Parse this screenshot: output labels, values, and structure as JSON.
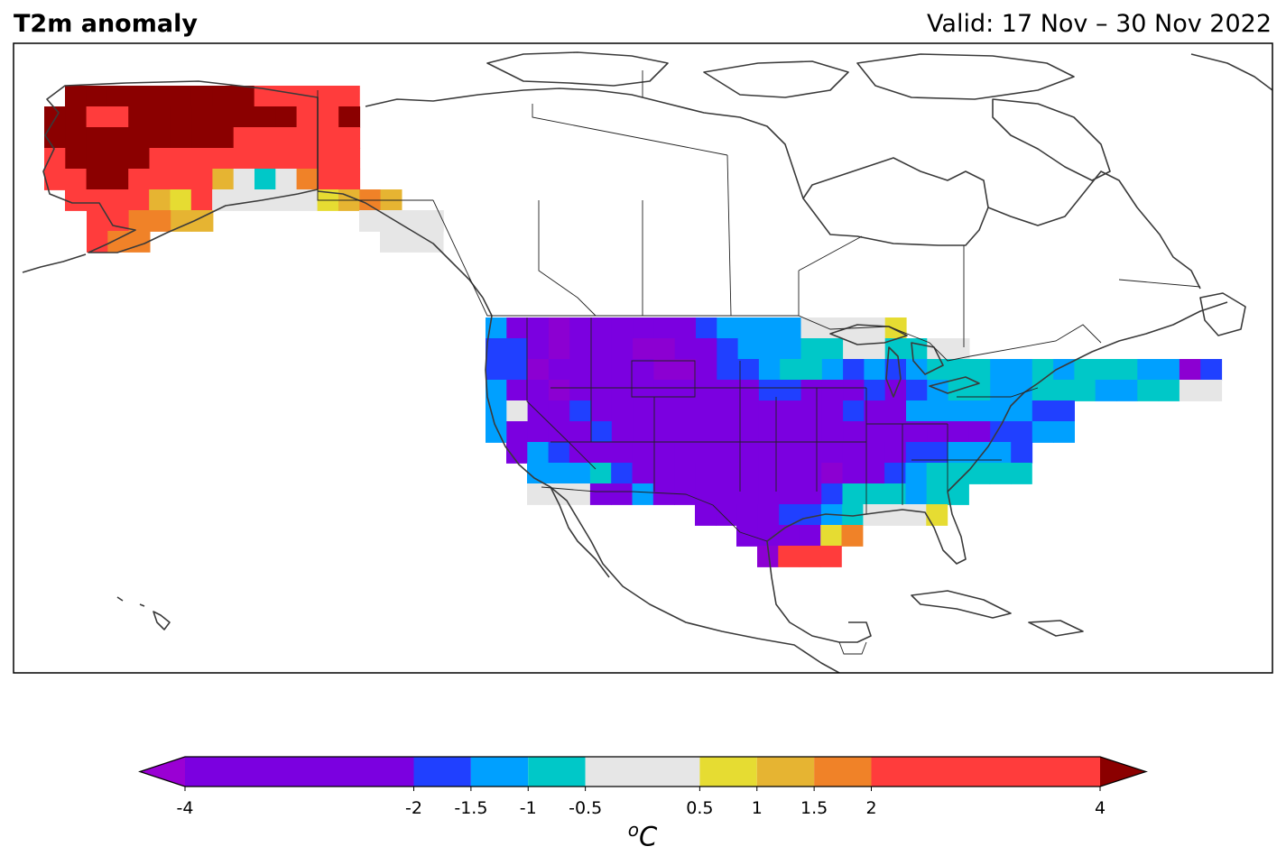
{
  "title": "T2m anomaly",
  "valid": "Valid: 17 Nov – 30 Nov 2022",
  "unit": {
    "sup": "o",
    "base": "C"
  },
  "colorbar": {
    "min": -4,
    "max": 4,
    "extend": "both",
    "ticks": [
      "-4",
      "-2",
      "-1.5",
      "-1",
      "-0.5",
      "0.5",
      "1",
      "1.5",
      "2",
      "4"
    ],
    "tick_values": [
      -4,
      -2,
      -1.5,
      -1,
      -0.5,
      0.5,
      1,
      1.5,
      2,
      4
    ],
    "under_color": "#9a00d4",
    "over_color": "#8b0000",
    "bins": [
      {
        "from": -4,
        "to": -2,
        "color": "#7b00e0"
      },
      {
        "from": -2,
        "to": -1.5,
        "color": "#2040ff"
      },
      {
        "from": -1.5,
        "to": -1,
        "color": "#00a0ff"
      },
      {
        "from": -1,
        "to": -0.5,
        "color": "#00c8c8"
      },
      {
        "from": -0.5,
        "to": 0.5,
        "color": "#e6e6e6"
      },
      {
        "from": 0.5,
        "to": 1,
        "color": "#e6dc32"
      },
      {
        "from": 1,
        "to": 1.5,
        "color": "#e6b432"
      },
      {
        "from": 1.5,
        "to": 2,
        "color": "#f08228"
      },
      {
        "from": 2,
        "to": 4,
        "color": "#ff3c3c"
      }
    ]
  },
  "colors": {
    "deep_purple": "#8c00d2",
    "purple": "#7b00e0",
    "blue": "#2040ff",
    "light_blue": "#00a0ff",
    "cyan": "#00c8c8",
    "grey": "#e6e6e6",
    "yellow": "#e6dc32",
    "gold": "#e6b432",
    "orange": "#f08228",
    "red": "#ff3c3c",
    "dark_red": "#8b0000",
    "coast": "#3a3a3a",
    "border": "#222222"
  }
}
